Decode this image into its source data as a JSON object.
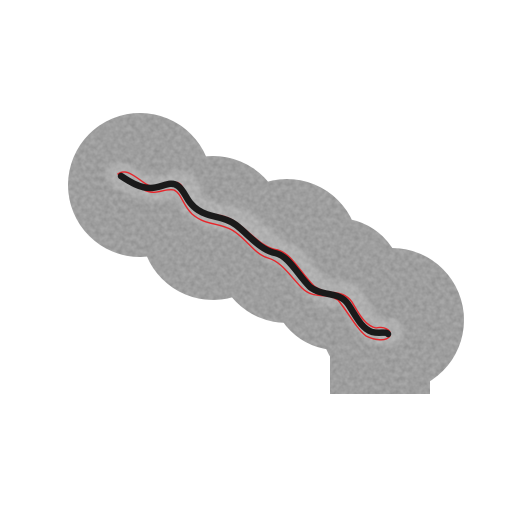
{
  "image": {
    "subject": "filament",
    "background_color": "#ffffff",
    "region_color": "#a8a8a8",
    "filament_color": "#1a1a1a",
    "outline_color": "#e8252a"
  }
}
